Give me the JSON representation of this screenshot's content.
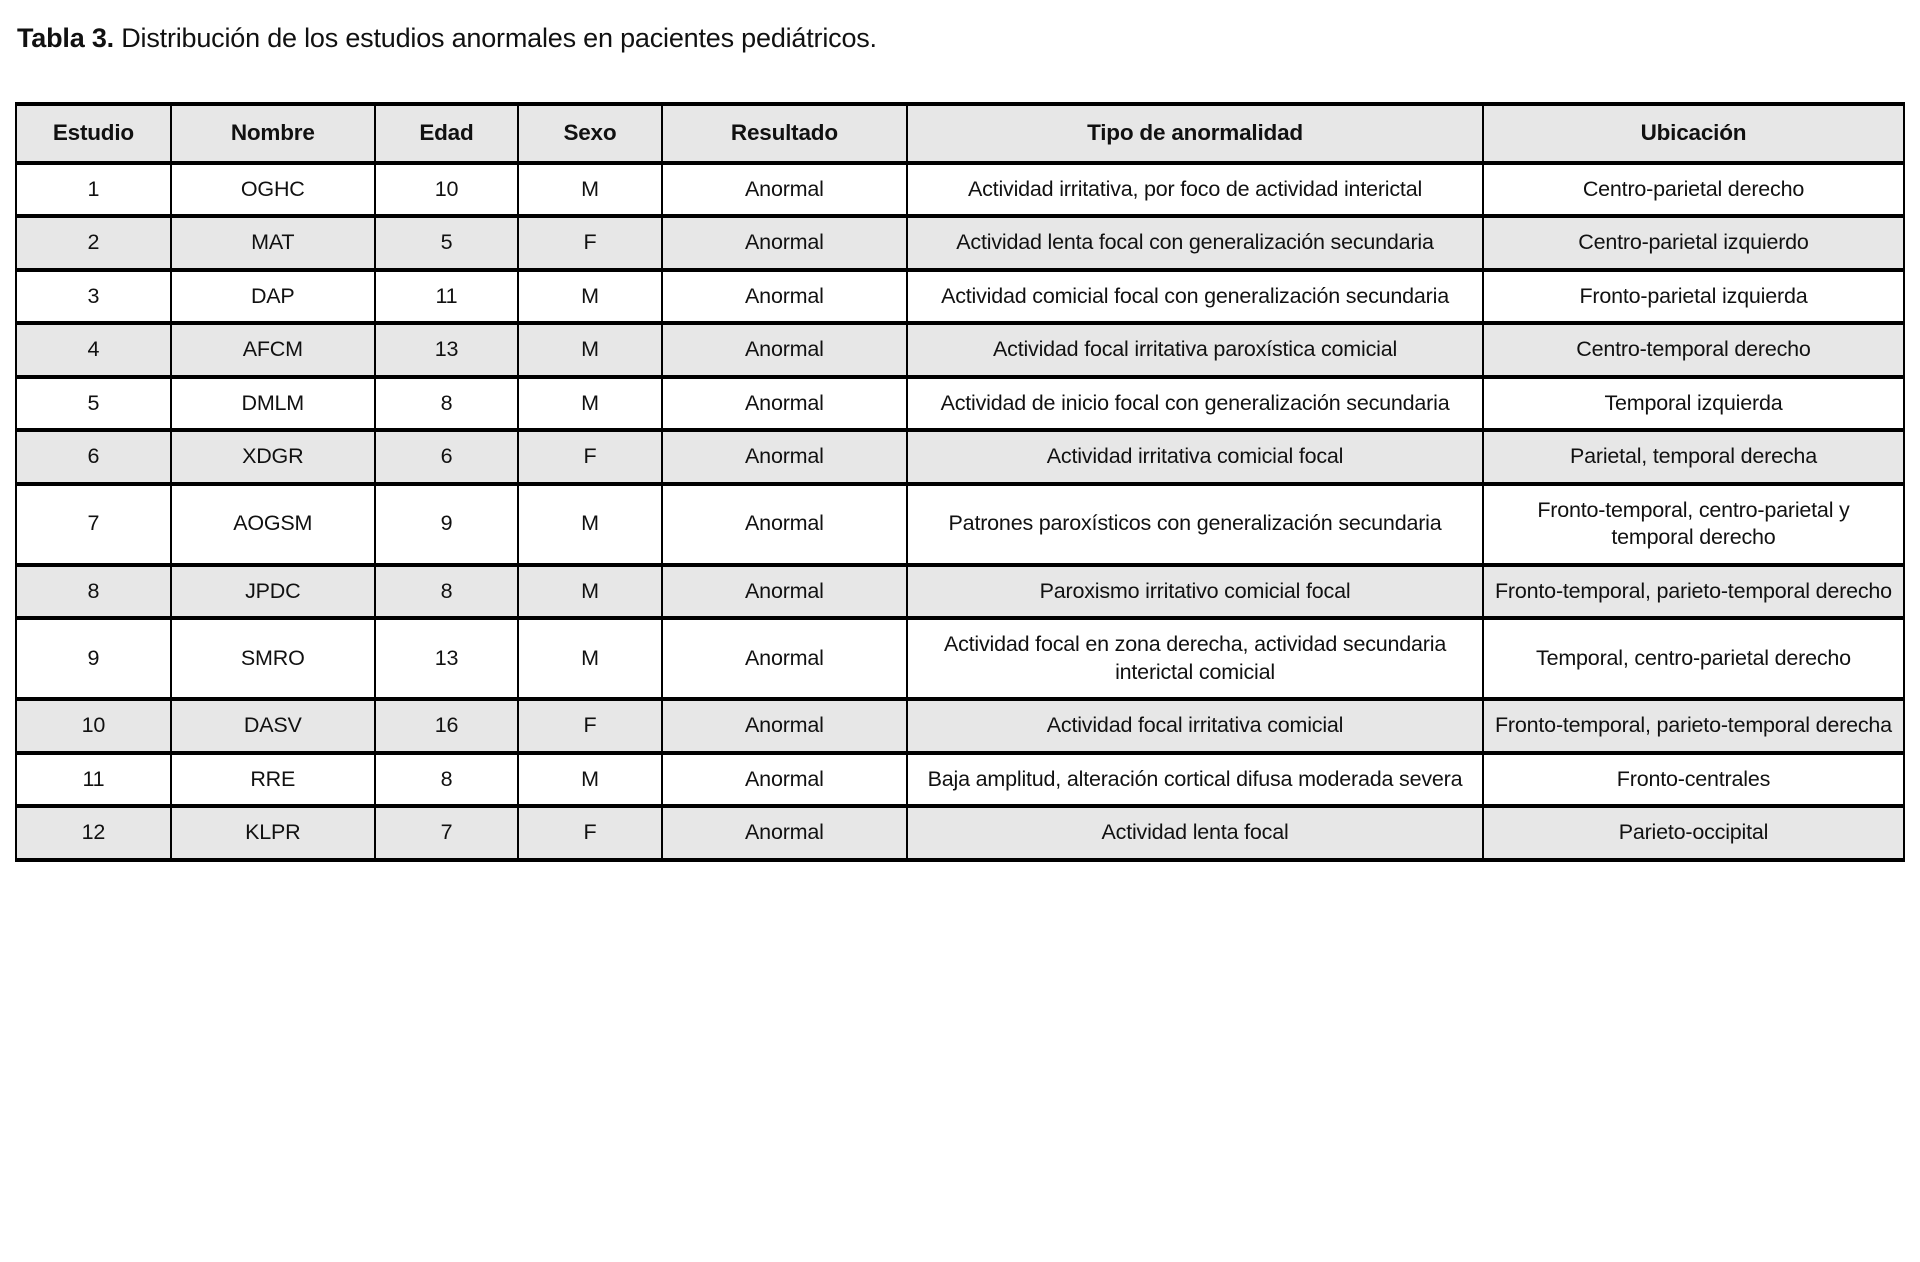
{
  "document": {
    "title_label": "Tabla 3.",
    "title_text": " Distribución de los estudios anormales en pacientes pediátricos."
  },
  "colors": {
    "header_bg": "#e7e7e7",
    "row_alt_bg": "#e7e7e7",
    "row_bg": "#ffffff",
    "border": "#000000",
    "text": "#111111"
  },
  "table": {
    "columns": [
      "Estudio",
      "Nombre",
      "Edad",
      "Sexo",
      "Resultado",
      "Tipo de anormalidad",
      "Ubicación"
    ],
    "rows": [
      {
        "estudio": "1",
        "nombre": "OGHC",
        "edad": "10",
        "sexo": "M",
        "resultado": "Anormal",
        "tipo": "Actividad irritativa, por foco de actividad interictal",
        "ubicacion": "Centro-parietal derecho"
      },
      {
        "estudio": "2",
        "nombre": "MAT",
        "edad": "5",
        "sexo": "F",
        "resultado": "Anormal",
        "tipo": "Actividad lenta focal con generalización secundaria",
        "ubicacion": "Centro-parietal izquierdo"
      },
      {
        "estudio": "3",
        "nombre": "DAP",
        "edad": "11",
        "sexo": "M",
        "resultado": "Anormal",
        "tipo": "Actividad comicial focal con generalización secundaria",
        "ubicacion": "Fronto-parietal izquierda"
      },
      {
        "estudio": "4",
        "nombre": "AFCM",
        "edad": "13",
        "sexo": "M",
        "resultado": "Anormal",
        "tipo": "Actividad focal irritativa paroxística comicial",
        "ubicacion": "Centro-temporal derecho"
      },
      {
        "estudio": "5",
        "nombre": "DMLM",
        "edad": "8",
        "sexo": "M",
        "resultado": "Anormal",
        "tipo": "Actividad de inicio focal con generalización secundaria",
        "ubicacion": "Temporal izquierda"
      },
      {
        "estudio": "6",
        "nombre": "XDGR",
        "edad": "6",
        "sexo": "F",
        "resultado": "Anormal",
        "tipo": "Actividad irritativa comicial focal",
        "ubicacion": "Parietal, temporal derecha"
      },
      {
        "estudio": "7",
        "nombre": "AOGSM",
        "edad": "9",
        "sexo": "M",
        "resultado": "Anormal",
        "tipo": "Patrones paroxísticos con generalización secundaria",
        "ubicacion": "Fronto-temporal, centro-parietal y temporal derecho"
      },
      {
        "estudio": "8",
        "nombre": "JPDC",
        "edad": "8",
        "sexo": "M",
        "resultado": "Anormal",
        "tipo": "Paroxismo irritativo comicial focal",
        "ubicacion": "Fronto-temporal, parieto-temporal derecho"
      },
      {
        "estudio": "9",
        "nombre": "SMRO",
        "edad": "13",
        "sexo": "M",
        "resultado": "Anormal",
        "tipo": "Actividad focal en zona derecha, actividad secundaria interictal comicial",
        "ubicacion": "Temporal, centro-parietal derecho"
      },
      {
        "estudio": "10",
        "nombre": "DASV",
        "edad": "16",
        "sexo": "F",
        "resultado": "Anormal",
        "tipo": "Actividad focal irritativa comicial",
        "ubicacion": "Fronto-temporal, parieto-temporal derecha"
      },
      {
        "estudio": "11",
        "nombre": "RRE",
        "edad": "8",
        "sexo": "M",
        "resultado": "Anormal",
        "tipo": "Baja amplitud, alteración cortical difusa moderada severa",
        "ubicacion": "Fronto-centrales"
      },
      {
        "estudio": "12",
        "nombre": "KLPR",
        "edad": "7",
        "sexo": "F",
        "resultado": "Anormal",
        "tipo": "Actividad lenta focal",
        "ubicacion": "Parieto-occipital"
      }
    ]
  }
}
